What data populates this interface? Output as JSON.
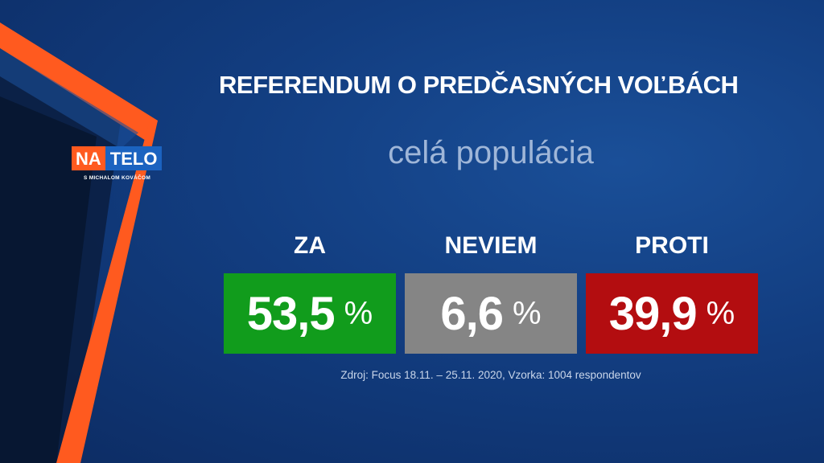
{
  "logo": {
    "part1": "NA",
    "part2": "TELO",
    "subtitle": "S MICHALOM KOVÁČOM"
  },
  "title": "REFERENDUM O PREDČASNÝCH VOĽBÁCH",
  "subtitle": "celá populácia",
  "source": "Zdroj: Focus 18.11. – 25.11. 2020, Vzorka: 1004 respondentov",
  "chart_data": {
    "type": "table",
    "title": "REFERENDUM O PREDČASNÝCH VOĽBÁCH",
    "subtitle": "celá populácia",
    "categories": [
      "ZA",
      "NEVIEM",
      "PROTI"
    ],
    "values": [
      53.5,
      6.6,
      39.9
    ],
    "value_labels": [
      "53,5",
      "6,6",
      "39,9"
    ],
    "unit": "%",
    "colors": [
      "#119c1c",
      "#858585",
      "#b30d10"
    ]
  },
  "colors": {
    "orange_accent": "#ff5a1f",
    "background": "#123d80"
  }
}
